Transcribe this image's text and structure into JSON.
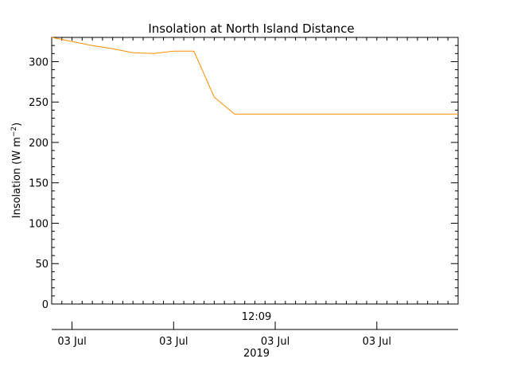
{
  "chart_data": {
    "type": "line",
    "title": "Insolation at North Island Distance",
    "ylabel": "Insolation (W m",
    "ylabel_sup": "−2",
    "ylabel_close": ")",
    "ylim": [
      0,
      330
    ],
    "yticks": [
      0,
      50,
      100,
      150,
      200,
      250,
      300
    ],
    "y_minor_step": 10,
    "xlim": [
      0,
      100
    ],
    "time_label": "12:09",
    "time_label_x": 50.4,
    "xticks": [
      {
        "x": 5,
        "label": "03 Jul"
      },
      {
        "x": 30,
        "label": "03 Jul"
      },
      {
        "x": 55,
        "label": "03 Jul"
      },
      {
        "x": 80,
        "label": "03 Jul"
      }
    ],
    "x_minor_step": 2.5,
    "year_label": "2019",
    "year_label_x": 50.4,
    "series": [
      {
        "color": "#ff8c00",
        "x": [
          0,
          5,
          10,
          15,
          20,
          25,
          30,
          35,
          40,
          45,
          50,
          55,
          60,
          65,
          70,
          75,
          80,
          85,
          90,
          95,
          100
        ],
        "y": [
          330,
          325,
          320,
          316,
          311,
          310,
          313,
          313,
          256,
          235,
          235,
          235,
          235,
          235,
          235,
          235,
          235,
          235,
          235,
          235,
          235
        ]
      }
    ]
  }
}
